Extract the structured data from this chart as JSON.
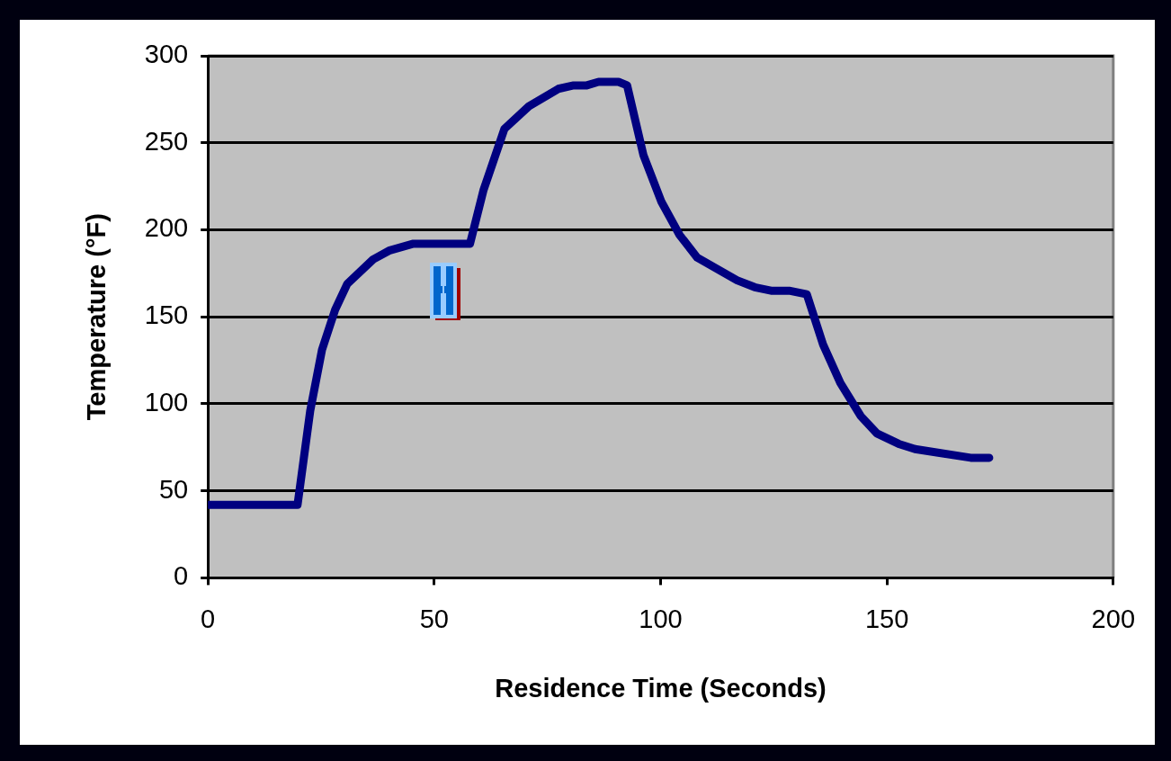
{
  "chart_data": {
    "type": "line",
    "xlabel": "Residence Time (Seconds)",
    "ylabel": "Temperature (°F)",
    "xlim": [
      0,
      200
    ],
    "xticks": [
      0,
      50,
      100,
      150,
      200
    ],
    "ylim": [
      0,
      300
    ],
    "yticks": [
      0,
      50,
      100,
      150,
      200,
      250,
      300
    ],
    "grid": "y",
    "legend": false,
    "marker": "none",
    "line_style": "solid",
    "series": [
      {
        "color": "#000080",
        "x": [
          0,
          19.8,
          22.6,
          25.2,
          28.1,
          30.8,
          36.5,
          40,
          45.4,
          57.9,
          60.9,
          65.5,
          70.9,
          77.4,
          80.8,
          83.7,
          86.3,
          90.7,
          92.6,
          96.2,
          100.2,
          104.2,
          108.1,
          116.9,
          120.8,
          124.4,
          128.4,
          132.3,
          135.9,
          139.7,
          144.2,
          147.8,
          152.6,
          156.2,
          168.5,
          172.6
        ],
        "values": [
          42,
          42,
          96,
          131,
          154,
          169,
          183,
          188,
          192,
          192,
          223,
          258,
          271,
          281,
          283,
          283,
          285,
          285,
          283,
          243,
          216,
          197,
          184,
          171,
          167,
          165,
          165,
          163,
          134,
          112,
          93,
          83,
          77,
          74,
          69,
          69
        ]
      }
    ]
  }
}
